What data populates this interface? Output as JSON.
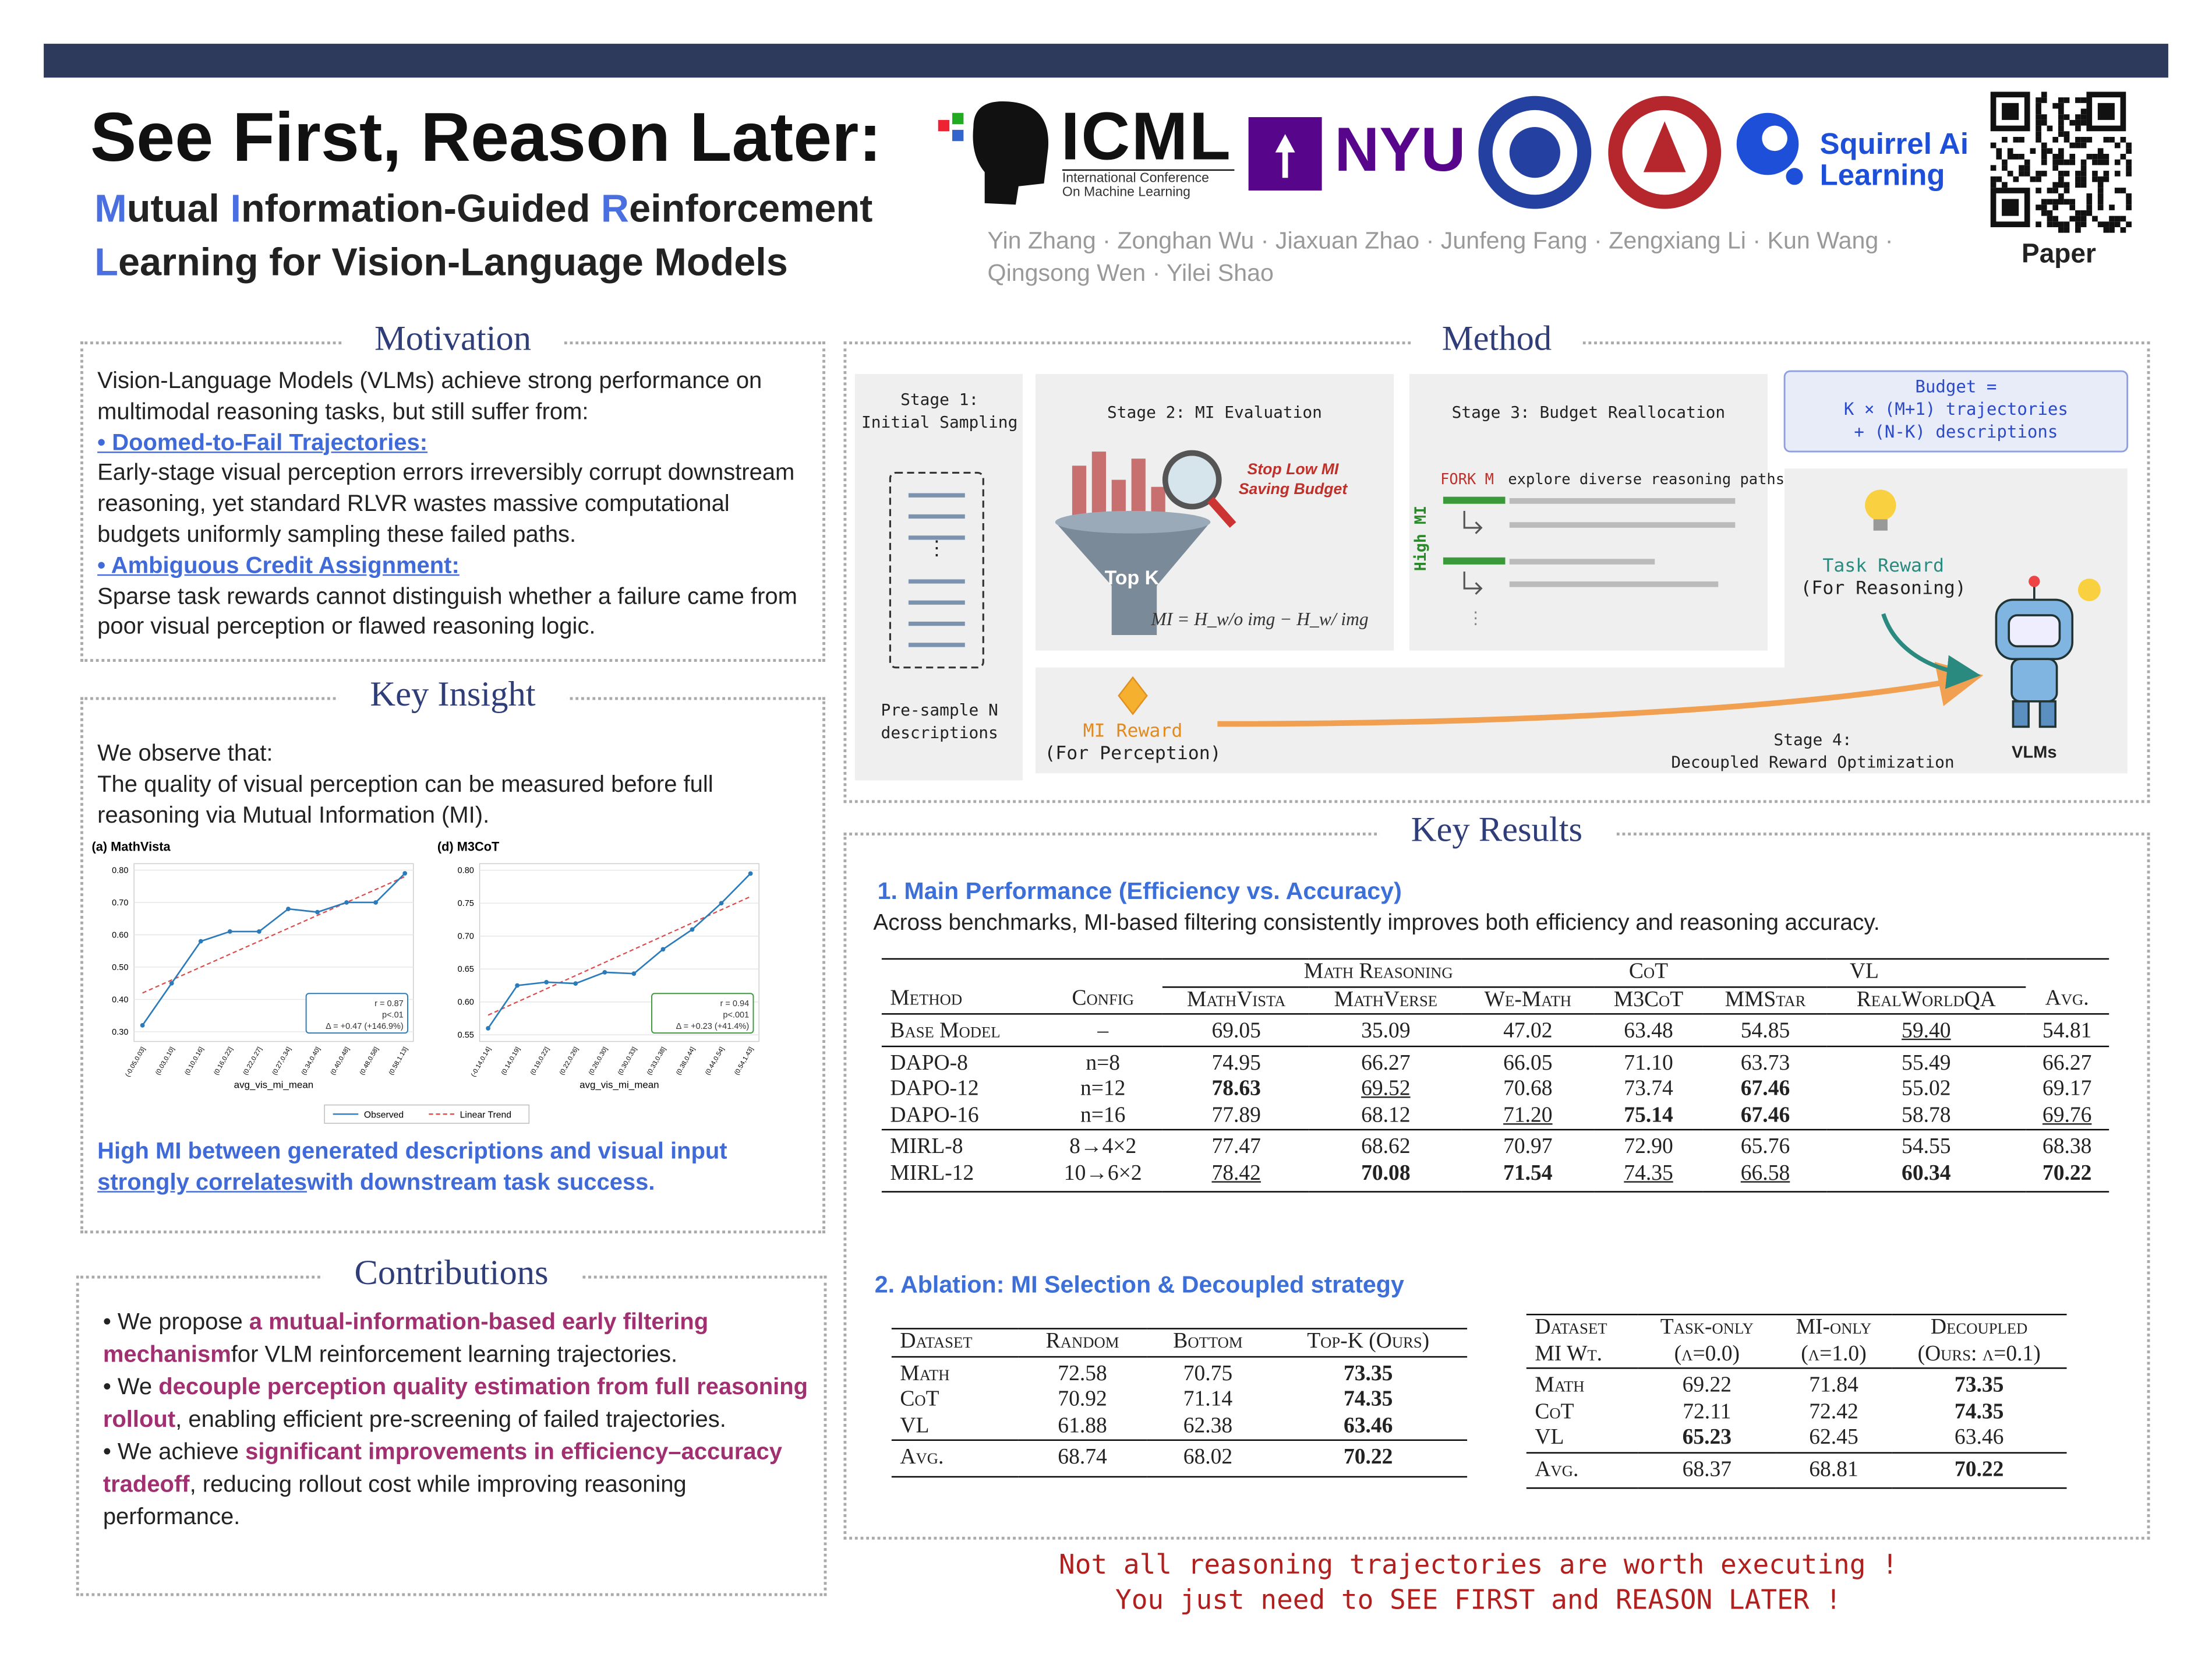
{
  "header": {
    "title": "See First, Reason Later:",
    "subtitle": [
      [
        "M",
        "utual ",
        "I",
        "nformation-Guided ",
        "R",
        "einforcement"
      ],
      [
        "L",
        "earning for Vision-Language Models"
      ]
    ],
    "authors": [
      "Yin Zhang · Zonghan Wu · Jiaxuan Zhao · Junfeng Fang · Zengxiang Li · Kun Wang ·",
      "Qingsong Wen · Yilei Shao"
    ]
  },
  "logos": {
    "icml": "ICML",
    "icml_caption": [
      "International Conference",
      "On Machine Learning"
    ],
    "nyu": "NYU",
    "squirrel": [
      "Squirrel Ai",
      "Learning"
    ],
    "qr_label": "Paper"
  },
  "motivation": {
    "title": "Motivation",
    "intro": "Vision-Language Models (VLMs) achieve strong performance on multimodal reasoning tasks, but still suffer from:",
    "items": [
      {
        "heading": "• Doomed-to-Fail Trajectories: ",
        "text": "Early-stage visual perception errors irreversibly corrupt downstream reasoning, yet standard RLVR wastes massive computational budgets uniformly sampling these failed paths."
      },
      {
        "heading": "• Ambiguous Credit Assignment: ",
        "text": "Sparse task rewards cannot distinguish whether a failure came from poor visual perception or flawed reasoning logic."
      }
    ]
  },
  "key_insight": {
    "title": "Key Insight",
    "text": [
      "We observe that:",
      "The quality of visual perception can be measured before full reasoning via Mutual Information (MI)."
    ],
    "conclusion": [
      "High MI between generated descriptions and visual input ",
      "strongly correlates",
      "with downstream task success."
    ]
  },
  "contributions": {
    "title": "Contributions",
    "items": [
      [
        "• We propose ",
        "a mutual-information-based early filtering mechanism",
        "for VLM reinforcement learning trajectories."
      ],
      [
        "• We ",
        "decouple perception quality estimation from full reasoning rollout",
        ", enabling efficient pre-screening of failed trajectories."
      ],
      [
        "• We achieve ",
        "significant improvements in efficiency–accuracy tradeoff",
        ", reducing rollout cost while improving reasoning performance."
      ]
    ]
  },
  "method": {
    "title": "Method",
    "stage1": [
      "Stage 1:",
      "Initial Sampling"
    ],
    "stage1_note": "Pre-sample N descriptions",
    "stage2": "Stage 2: MI Evaluation",
    "stop": [
      "Stop Low MI",
      "Saving Budget"
    ],
    "topk": "Top K",
    "formula": "MI = H_w/o img − H_w/ img",
    "stage3": "Stage 3: Budget Reallocation",
    "fork": "FORK M",
    "explore": "explore diverse reasoning paths",
    "high_mi": "High MI",
    "budget": [
      "Budget =",
      "K × (M+1) trajectories",
      "+ (N-K) descriptions"
    ],
    "task_reward": [
      "Task Reward",
      "(For Reasoning)"
    ],
    "mi_reward": [
      "MI Reward",
      "(For Perception)"
    ],
    "stage4": [
      "Stage 4:",
      "Decoupled Reward Optimization"
    ],
    "vlms": "VLMs"
  },
  "key_results": {
    "title": "Key Results",
    "main": {
      "heading": "1. Main Performance (Efficiency vs. Accuracy)",
      "text": "Across benchmarks, MI-based filtering consistently improves both efficiency and reasoning accuracy.",
      "table": {
        "groups": [
          {
            "label": "Math Reasoning",
            "span": 3
          },
          {
            "label": "CoT",
            "span": 1
          },
          {
            "label": "VL",
            "span": 2
          }
        ],
        "columns": [
          [
            "Method",
            "Config",
            "MathVista",
            "MathVerse",
            "We-Math",
            "M3CoT",
            "MMStar",
            "RealWorldQA",
            "Avg."
          ]
        ],
        "body": [
          [
            [
              "Base Model",
              "–",
              "69.05",
              "35.09",
              "47.02",
              "63.48",
              "54.85",
              "59.40",
              "54.81"
            ]
          ],
          [
            [
              "DAPO-8",
              "n=8",
              "74.95",
              "66.27",
              "66.05",
              "71.10",
              "63.73",
              "55.49",
              "66.27"
            ],
            [
              "DAPO-12",
              "n=12",
              "78.63",
              "69.52",
              "70.68",
              "73.74",
              "67.46",
              "55.02",
              "69.17"
            ],
            [
              "DAPO-16",
              "n=16",
              "77.89",
              "68.12",
              "71.20",
              "75.14",
              "67.46",
              "58.78",
              "69.76"
            ]
          ],
          [
            [
              "MIRL-8",
              "8→4×2",
              "77.47",
              "68.62",
              "70.97",
              "72.90",
              "65.76",
              "54.55",
              "68.38"
            ],
            [
              "MIRL-12",
              "10→6×2",
              "78.42",
              "70.08",
              "71.54",
              "74.35",
              "66.58",
              "60.34",
              "70.22"
            ]
          ]
        ],
        "bold": [
          [
            1,
            1,
            2
          ],
          [
            1,
            1,
            6
          ],
          [
            1,
            2,
            5
          ],
          [
            1,
            2,
            6
          ],
          [
            2,
            1,
            3
          ],
          [
            2,
            1,
            4
          ],
          [
            2,
            1,
            7
          ],
          [
            2,
            1,
            8
          ]
        ],
        "underline": [
          [
            0,
            0,
            7
          ],
          [
            1,
            1,
            3
          ],
          [
            1,
            2,
            4
          ],
          [
            1,
            2,
            8
          ],
          [
            2,
            1,
            2
          ],
          [
            2,
            1,
            5
          ],
          [
            2,
            1,
            6
          ]
        ]
      }
    },
    "ablation": {
      "heading": "2. Ablation: MI Selection & Decoupled strategy",
      "tables": [
        {
          "columns": [
            [
              "Dataset",
              "Random",
              "Bottom",
              "Top-K (Ours)"
            ]
          ],
          "body": [
            [
              [
                "Math",
                "72.58",
                "70.75",
                "73.35"
              ],
              [
                "CoT",
                "70.92",
                "71.14",
                "74.35"
              ],
              [
                "VL",
                "61.88",
                "62.38",
                "63.46"
              ]
            ],
            [
              [
                "Avg.",
                "68.74",
                "68.02",
                "70.22"
              ]
            ]
          ],
          "bold": [
            [
              0,
              0,
              3
            ],
            [
              0,
              1,
              3
            ],
            [
              0,
              2,
              3
            ],
            [
              1,
              0,
              3
            ]
          ],
          "underline": []
        },
        {
          "columns": [
            [
              "Dataset",
              "Task-only",
              "MI-only",
              "Decoupled"
            ],
            [
              "MI Wt.",
              "(λ=0.0)",
              "(λ=1.0)",
              "(Ours: λ=0.1)"
            ]
          ],
          "body": [
            [
              [
                "Math",
                "69.22",
                "71.84",
                "73.35"
              ],
              [
                "CoT",
                "72.11",
                "72.42",
                "74.35"
              ],
              [
                "VL",
                "65.23",
                "62.45",
                "63.46"
              ]
            ],
            [
              [
                "Avg.",
                "68.37",
                "68.81",
                "70.22"
              ]
            ]
          ],
          "bold": [
            [
              0,
              0,
              3
            ],
            [
              0,
              1,
              3
            ],
            [
              0,
              2,
              1
            ],
            [
              1,
              0,
              3
            ]
          ],
          "underline": []
        }
      ]
    }
  },
  "footer": [
    "Not all reasoning trajectories are worth executing !",
    "You just need to SEE FIRST and REASON LATER !"
  ],
  "chart_data": [
    {
      "type": "line",
      "title": "(a) MathVista",
      "x_label": "avg_vis_mi_mean",
      "categories": [
        "(-0.05,0.03]",
        "(0.03,0.10]",
        "(0.10,0.16]",
        "(0.16,0.22]",
        "(0.22,0.27]",
        "(0.27,0.34]",
        "(0.34,0.40]",
        "(0.40,0.48]",
        "(0.48,0.58]",
        "(0.58,1.13]"
      ],
      "series": [
        {
          "name": "Observed",
          "color": "#2b7bba",
          "values": [
            0.32,
            0.45,
            0.58,
            0.61,
            0.61,
            0.68,
            0.67,
            0.7,
            0.7,
            0.79
          ]
        },
        {
          "name": "Linear Trend",
          "color": "#e04848",
          "dashed": true,
          "values": [
            0.42,
            0.46,
            0.5,
            0.54,
            0.58,
            0.62,
            0.66,
            0.7,
            0.74,
            0.78
          ]
        }
      ],
      "ylim": [
        0.27,
        0.82
      ],
      "yticks": [
        {
          "value": 0.3,
          "label": "0.30"
        },
        {
          "value": 0.4,
          "label": "0.40"
        },
        {
          "value": 0.5,
          "label": "0.50"
        },
        {
          "value": 0.6,
          "label": "0.60"
        },
        {
          "value": 0.7,
          "label": "0.70"
        },
        {
          "value": 0.8,
          "label": "0.80"
        }
      ],
      "grid": true,
      "annotation": [
        "r = 0.87",
        "p<.01",
        "Δ = +0.47 (+146.9%)"
      ],
      "annotation_color": "#2b7bba"
    },
    {
      "type": "line",
      "title": "(d) M3CoT",
      "x_label": "avg_vis_mi_mean",
      "categories": [
        "(-0.14,0.14]",
        "(0.14,0.19]",
        "(0.19,0.22]",
        "(0.22,0.26]",
        "(0.26,0.30]",
        "(0.30,0.33]",
        "(0.33,0.38]",
        "(0.38,0.44]",
        "(0.44,0.54]",
        "(0.54,1.43]"
      ],
      "series": [
        {
          "color": "#2b7bba",
          "values": [
            0.56,
            0.625,
            0.63,
            0.628,
            0.645,
            0.643,
            0.68,
            0.71,
            0.75,
            0.795
          ]
        },
        {
          "color": "#e04848",
          "dashed": true,
          "values": [
            0.58,
            0.6,
            0.62,
            0.64,
            0.66,
            0.68,
            0.7,
            0.72,
            0.74,
            0.76
          ]
        }
      ],
      "ylim": [
        0.54,
        0.81
      ],
      "yticks": [
        {
          "value": 0.55,
          "label": "0.55"
        },
        {
          "value": 0.6,
          "label": "0.60"
        },
        {
          "value": 0.65,
          "label": "0.65"
        },
        {
          "value": 0.7,
          "label": "0.70"
        },
        {
          "value": 0.75,
          "label": "0.75"
        },
        {
          "value": 0.8,
          "label": "0.80"
        }
      ],
      "grid": true,
      "annotation": [
        "r = 0.94",
        "p<.001",
        "Δ = +0.23 (+41.4%)"
      ],
      "annotation_color": "#3a9a3a"
    }
  ]
}
